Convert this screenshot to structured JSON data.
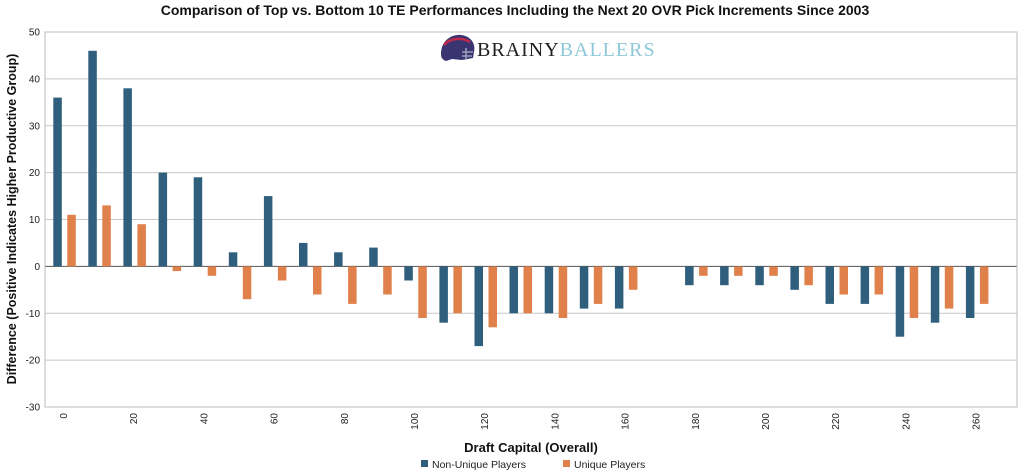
{
  "chart_data": {
    "type": "bar",
    "title": "Comparison of Top vs. Bottom 10 TE Performances Including the Next 20 OVR Pick Increments Since 2003",
    "xlabel": "Draft Capital (Overall)",
    "ylabel": "Difference (Positive Indicates Higher Productive Group)",
    "ylim": [
      -30,
      50
    ],
    "yticks": [
      "50",
      "40",
      "30",
      "20",
      "10",
      "0",
      "-10",
      "-20",
      "-30"
    ],
    "grid": true,
    "legend": "bottom",
    "x": [
      0,
      10,
      20,
      30,
      40,
      50,
      60,
      70,
      80,
      90,
      100,
      110,
      120,
      130,
      140,
      150,
      160,
      170,
      180,
      190,
      200,
      210,
      220,
      230,
      240,
      250,
      260
    ],
    "xtick_labels": [
      "0",
      "20",
      "40",
      "60",
      "80",
      "100",
      "120",
      "140",
      "160",
      "180",
      "200",
      "220",
      "240",
      "260"
    ],
    "series": [
      {
        "name": "Non-Unique Players",
        "color": "#2f5f7c",
        "values": [
          36,
          46,
          38,
          20,
          19,
          3,
          15,
          5,
          3,
          4,
          -3,
          -12,
          -17,
          -10,
          -10,
          -9,
          -9,
          0,
          -4,
          -4,
          -4,
          -5,
          -8,
          -8,
          -15,
          -12,
          -11
        ]
      },
      {
        "name": "Unique Players",
        "color": "#e0804a",
        "values": [
          11,
          13,
          9,
          -1,
          -2,
          -7,
          -3,
          -6,
          -8,
          -6,
          -11,
          -10,
          -13,
          -10,
          -11,
          -8,
          -5,
          0,
          -2,
          -2,
          -2,
          -4,
          -6,
          -6,
          -11,
          -9,
          -8
        ]
      }
    ]
  },
  "logo": {
    "part1": "BRAINY",
    "part2": "BALLERS"
  }
}
